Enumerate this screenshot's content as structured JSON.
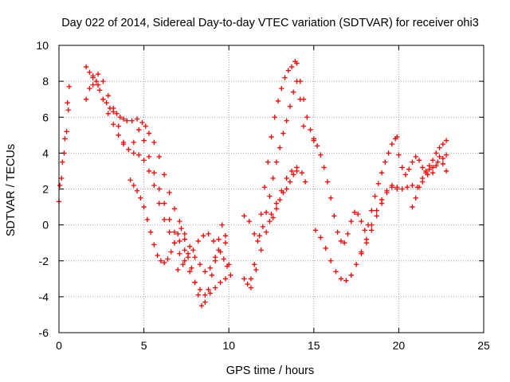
{
  "chart_data": {
    "type": "scatter",
    "title": "Day 022 of 2014, Sidereal Day-to-day VTEC variation (SDTVAR) for receiver ohi3",
    "xlabel": "GPS time / hours",
    "ylabel": "SDTVAR / TECUs",
    "xlim": [
      0,
      25
    ],
    "ylim": [
      -6,
      10
    ],
    "xticks": [
      "0",
      "5",
      "10",
      "15",
      "20",
      "25"
    ],
    "yticks": [
      "-6",
      "-4",
      "-2",
      "0",
      "2",
      "4",
      "6",
      "8",
      "10"
    ],
    "grid": true,
    "marker": "+",
    "color": "#ff0000",
    "series": [
      {
        "x": [
          0.0,
          0.15,
          0.3,
          0.45,
          0.55,
          0.6
        ],
        "y": [
          1.3,
          2.6,
          4.0,
          5.2,
          6.4,
          7.7
        ]
      },
      {
        "x": [
          0.05,
          0.2,
          0.35,
          0.5
        ],
        "y": [
          2.2,
          3.5,
          4.8,
          6.8
        ]
      },
      {
        "x": [
          1.6,
          1.8,
          2.0,
          2.2,
          2.4,
          2.6,
          2.8,
          3.0,
          3.2,
          3.4,
          3.6,
          3.8,
          4.0,
          4.3,
          4.6,
          4.9,
          5.1,
          5.3,
          5.6,
          5.9,
          6.2,
          6.5,
          6.8,
          7.1,
          7.4,
          7.7,
          8.0,
          8.3,
          8.6,
          8.9,
          9.2,
          9.5,
          9.8
        ],
        "y": [
          8.8,
          8.5,
          8.3,
          8.0,
          7.5,
          7.0,
          6.8,
          6.5,
          6.3,
          6.2,
          6.0,
          5.9,
          5.8,
          5.8,
          5.9,
          5.7,
          5.5,
          5.1,
          4.6,
          3.8,
          2.8,
          1.8,
          0.9,
          0.2,
          -0.5,
          -1.2,
          -1.8,
          -2.2,
          -2.6,
          -2.4,
          -2.0,
          -1.5,
          -1.0
        ]
      },
      {
        "x": [
          1.6,
          1.8,
          2.0,
          2.3,
          2.6,
          2.9,
          3.2,
          3.5,
          3.8,
          4.1,
          4.4,
          4.7,
          5.0,
          5.3,
          5.6,
          5.9,
          6.2,
          6.5,
          6.8,
          7.1,
          7.4,
          7.7,
          8.0,
          8.3,
          8.6,
          8.9,
          9.2,
          9.5,
          9.8,
          10.1
        ],
        "y": [
          7.0,
          7.6,
          8.2,
          7.8,
          7.0,
          6.2,
          5.6,
          5.0,
          4.5,
          4.2,
          4.0,
          3.9,
          3.6,
          3.0,
          2.2,
          1.2,
          0.3,
          -0.4,
          -1.0,
          -1.6,
          -2.0,
          -2.6,
          -3.2,
          -3.6,
          -3.9,
          -3.8,
          -3.5,
          -3.2,
          -3.0,
          -2.8
        ]
      },
      {
        "x": [
          2.0,
          2.3,
          2.6,
          2.9,
          3.2,
          3.5,
          3.8,
          4.1,
          4.4,
          4.7,
          5.0,
          5.3,
          5.6,
          5.9,
          6.2,
          6.5,
          6.8,
          7.1,
          7.4
        ],
        "y": [
          7.8,
          8.4,
          8.0,
          7.2,
          6.5,
          5.5,
          4.6,
          4.2,
          4.6,
          5.3,
          4.7,
          3.8,
          2.9,
          2.0,
          1.2,
          0.3,
          -0.4,
          -0.9,
          -1.4
        ]
      },
      {
        "x": [
          4.2,
          4.4,
          4.6,
          4.8,
          5.0,
          5.2,
          5.4,
          5.6,
          5.8,
          6.0,
          6.2,
          6.4,
          6.6,
          6.8,
          7.0,
          7.2,
          7.4,
          7.6,
          7.8,
          8.0,
          8.2,
          8.4,
          8.6,
          8.8,
          9.0,
          9.2,
          9.4,
          9.6,
          9.8,
          10.0
        ],
        "y": [
          2.5,
          2.2,
          1.9,
          1.5,
          1.0,
          0.3,
          -0.4,
          -1.1,
          -1.7,
          -2.0,
          -2.1,
          -1.9,
          -1.5,
          -1.0,
          -0.5,
          -0.2,
          -0.8,
          -1.6,
          -2.4,
          -3.2,
          -3.9,
          -4.5,
          -4.3,
          -3.6,
          -2.8,
          -1.8,
          -0.8,
          0.0,
          -0.6,
          -2.2
        ]
      },
      {
        "x": [
          7.0,
          7.3,
          7.6,
          7.9,
          8.2,
          8.5,
          8.8,
          9.1,
          9.4,
          9.7,
          9.9
        ],
        "y": [
          -2.5,
          -2.2,
          -1.8,
          -1.4,
          -0.9,
          -0.6,
          -0.5,
          -0.9,
          -1.4,
          -1.9,
          -2.3
        ]
      },
      {
        "x": [
          10.9,
          11.1,
          11.3,
          11.5,
          11.7,
          11.9,
          12.1,
          12.3,
          12.5,
          12.7,
          12.9,
          13.1,
          13.3,
          13.5,
          13.7,
          13.9,
          14.0,
          14.2,
          14.4,
          14.6,
          14.8,
          15.0
        ],
        "y": [
          -3.0,
          -3.3,
          -3.0,
          -2.2,
          -0.9,
          0.6,
          2.1,
          3.5,
          4.9,
          6.0,
          6.9,
          7.6,
          8.2,
          8.6,
          8.8,
          9.1,
          9.0,
          8.0,
          7.0,
          6.0,
          5.3,
          4.8
        ]
      },
      {
        "x": [
          10.9,
          11.2,
          11.5,
          11.8,
          12.0,
          12.2,
          12.4,
          12.6,
          12.8,
          13.0,
          13.2,
          13.4,
          13.6,
          13.8,
          14.0,
          14.2,
          14.4
        ],
        "y": [
          0.5,
          0.2,
          -0.5,
          -0.6,
          -0.1,
          0.7,
          1.6,
          2.6,
          3.5,
          4.3,
          5.1,
          5.8,
          6.6,
          7.4,
          8.0,
          7.0,
          5.5
        ]
      },
      {
        "x": [
          11.3,
          11.6,
          11.9,
          12.2,
          12.5,
          12.8,
          13.1,
          13.4,
          13.7,
          14.0,
          14.3,
          14.5
        ],
        "y": [
          -3.5,
          -2.5,
          -1.4,
          -0.4,
          0.6,
          1.2,
          1.9,
          2.6,
          3.0,
          3.2,
          2.9,
          2.4
        ]
      },
      {
        "x": [
          12.4,
          12.6,
          12.8,
          13.0,
          13.2,
          13.4,
          13.6,
          13.8,
          14.0
        ],
        "y": [
          0.2,
          0.4,
          0.9,
          1.4,
          1.8,
          2.0,
          2.4,
          2.8,
          3.0
        ]
      },
      {
        "x": [
          15.0,
          15.2,
          15.4,
          15.6,
          15.8,
          16.0,
          16.2,
          16.4,
          16.6,
          16.8,
          17.0,
          17.2,
          17.4,
          17.6,
          17.8,
          18.0,
          18.2,
          18.4,
          18.6,
          18.8,
          19.0,
          19.2,
          19.4,
          19.6,
          19.8,
          19.9
        ],
        "y": [
          4.7,
          4.4,
          3.9,
          3.2,
          2.4,
          1.5,
          0.5,
          -0.4,
          -0.9,
          -1.0,
          -0.5,
          0.2,
          0.7,
          0.6,
          0.2,
          -0.3,
          0.0,
          0.8,
          1.6,
          2.3,
          2.9,
          3.5,
          4.0,
          4.5,
          4.8,
          4.9
        ]
      },
      {
        "x": [
          15.1,
          15.4,
          15.7,
          16.0,
          16.3,
          16.6,
          16.9,
          17.2,
          17.5,
          17.8,
          18.1,
          18.4,
          18.7,
          19.0,
          19.3,
          19.6,
          19.9,
          20.2,
          20.5,
          20.8,
          21.1,
          21.4,
          21.7,
          22.0,
          22.3,
          22.6,
          22.8
        ],
        "y": [
          -0.3,
          -0.7,
          -1.3,
          -2.0,
          -2.6,
          -3.0,
          -3.1,
          -2.8,
          -2.2,
          -1.5,
          -0.8,
          0.0,
          0.8,
          1.4,
          1.9,
          2.1,
          2.1,
          2.0,
          2.1,
          2.2,
          2.1,
          2.4,
          2.8,
          3.2,
          3.5,
          3.7,
          3.9
        ]
      },
      {
        "x": [
          17.8,
          18.1,
          18.4,
          18.7,
          19.0,
          19.3,
          19.6,
          19.9
        ],
        "y": [
          -1.6,
          -1.0,
          -0.3,
          0.5,
          1.2,
          1.8,
          2.2,
          2.0
        ]
      },
      {
        "x": [
          20.0,
          20.2,
          20.4,
          20.6,
          20.8,
          21.0,
          21.2,
          21.4,
          21.6,
          21.8,
          22.0,
          22.2,
          22.4,
          22.6,
          22.8
        ],
        "y": [
          3.9,
          3.2,
          2.8,
          3.1,
          3.5,
          3.8,
          3.6,
          3.2,
          2.9,
          3.3,
          3.6,
          4.0,
          4.3,
          4.5,
          4.7
        ]
      },
      {
        "x": [
          20.8,
          21.0,
          21.2,
          21.4,
          21.6,
          21.8,
          22.0,
          22.2,
          22.4,
          22.6,
          22.8
        ],
        "y": [
          1.0,
          1.5,
          2.1,
          2.6,
          3.0,
          3.1,
          2.9,
          3.3,
          3.8,
          3.4,
          3.0
        ]
      }
    ]
  }
}
